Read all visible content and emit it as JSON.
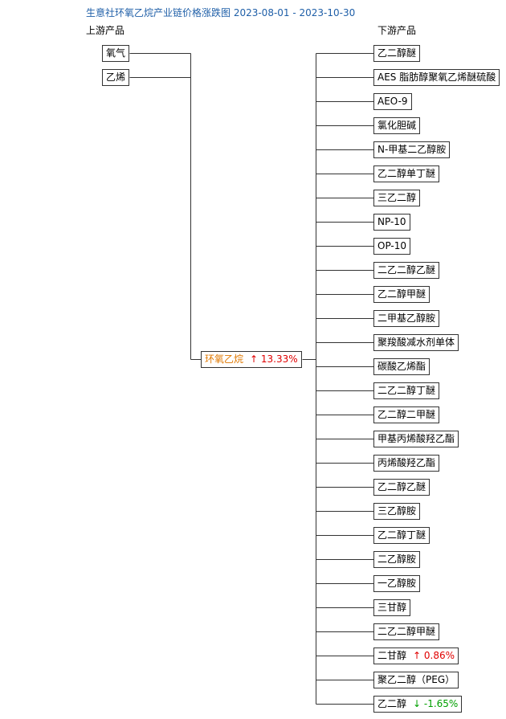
{
  "header": {
    "title": "生意社环氧乙烷产业链价格涨跌图 2023-08-01 - 2023-10-30",
    "upstream_label": "上游产品",
    "downstream_label": "下游产品"
  },
  "upstream": [
    "氧气",
    "乙烯"
  ],
  "center": {
    "label": "环氧乙烷",
    "change": "↑ 13.33%"
  },
  "downstream": [
    {
      "label": "乙二醇醚"
    },
    {
      "label": "AES 脂肪醇聚氧乙烯醚硫酸"
    },
    {
      "label": "AEO-9"
    },
    {
      "label": "氯化胆碱"
    },
    {
      "label": "N-甲基二乙醇胺"
    },
    {
      "label": "乙二醇单丁醚"
    },
    {
      "label": "三乙二醇"
    },
    {
      "label": "NP-10"
    },
    {
      "label": "OP-10"
    },
    {
      "label": "二乙二醇乙醚"
    },
    {
      "label": "乙二醇甲醚"
    },
    {
      "label": "二甲基乙醇胺"
    },
    {
      "label": "聚羧酸减水剂单体"
    },
    {
      "label": "碳酸乙烯酯"
    },
    {
      "label": "二乙二醇丁醚"
    },
    {
      "label": "乙二醇二甲醚"
    },
    {
      "label": "甲基丙烯酸羟乙酯"
    },
    {
      "label": "丙烯酸羟乙酯"
    },
    {
      "label": "乙二醇乙醚"
    },
    {
      "label": "三乙醇胺"
    },
    {
      "label": "乙二醇丁醚"
    },
    {
      "label": "二乙醇胺"
    },
    {
      "label": "一乙醇胺"
    },
    {
      "label": "三甘醇"
    },
    {
      "label": "二乙二醇甲醚"
    },
    {
      "label": "二甘醇",
      "change": "↑ 0.86%"
    },
    {
      "label": "聚乙二醇（PEG）"
    },
    {
      "label": "乙二醇",
      "change": "↓ -1.65%"
    }
  ]
}
